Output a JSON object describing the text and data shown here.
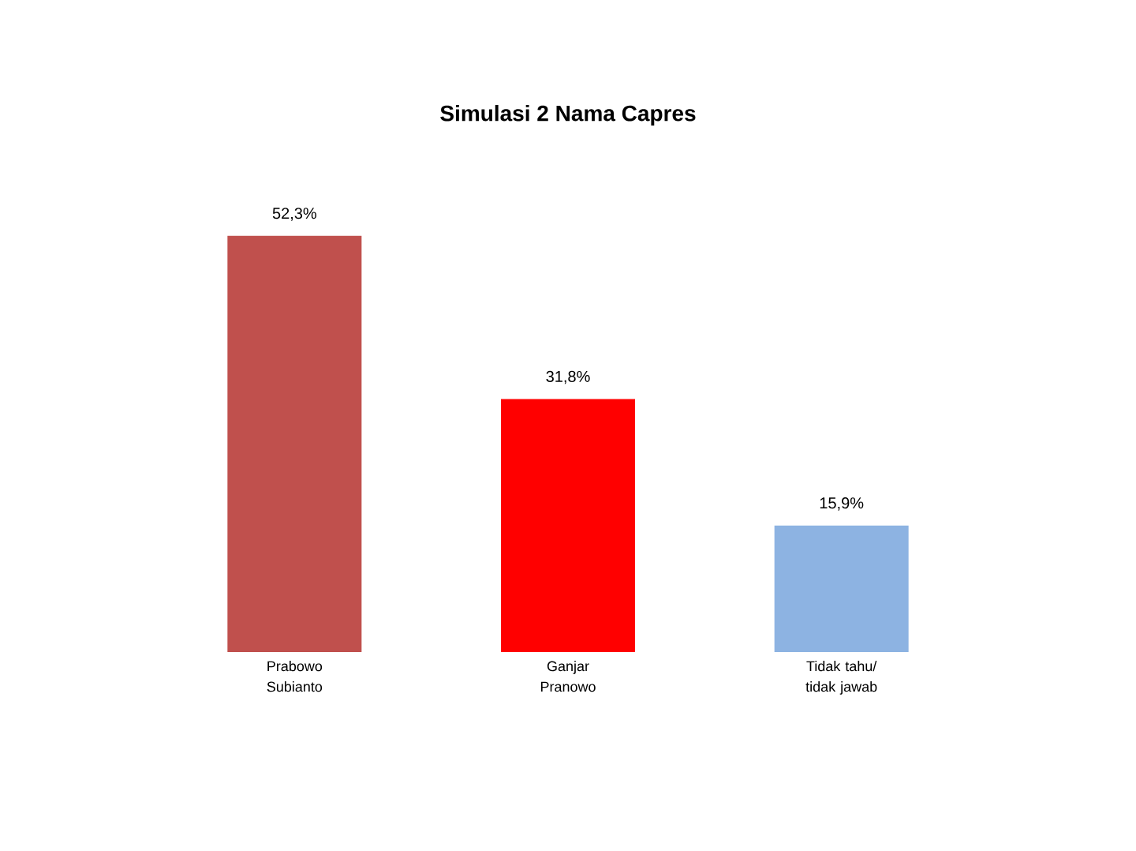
{
  "chart_data": {
    "type": "bar",
    "title": "Simulasi 2 Nama Capres",
    "categories": [
      "Prabowo Subianto",
      "Ganjar Pranowo",
      "Tidak tahu/ tidak jawab"
    ],
    "values": [
      52.3,
      31.8,
      15.9
    ],
    "colors": [
      "#c0504d",
      "#ff0000",
      "#8db3e2"
    ],
    "value_labels": [
      "52,3%",
      "31,8%",
      "15,9%"
    ],
    "tick_labels": "x"
  }
}
